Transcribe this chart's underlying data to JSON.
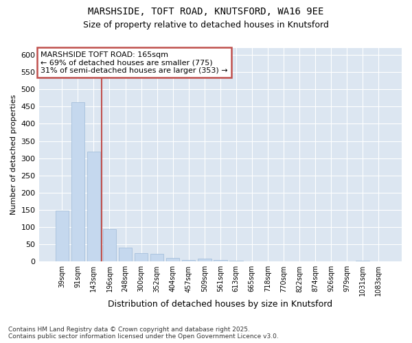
{
  "title1": "MARSHSIDE, TOFT ROAD, KNUTSFORD, WA16 9EE",
  "title2": "Size of property relative to detached houses in Knutsford",
  "xlabel": "Distribution of detached houses by size in Knutsford",
  "ylabel": "Number of detached properties",
  "categories": [
    "39sqm",
    "91sqm",
    "143sqm",
    "196sqm",
    "248sqm",
    "300sqm",
    "352sqm",
    "404sqm",
    "457sqm",
    "509sqm",
    "561sqm",
    "613sqm",
    "665sqm",
    "718sqm",
    "770sqm",
    "822sqm",
    "874sqm",
    "926sqm",
    "979sqm",
    "1031sqm",
    "1083sqm"
  ],
  "values": [
    148,
    462,
    320,
    95,
    40,
    25,
    22,
    10,
    5,
    8,
    5,
    3,
    0,
    0,
    0,
    0,
    0,
    0,
    0,
    3,
    0
  ],
  "bar_color": "#c5d8ee",
  "bar_edge_color": "#9dbad8",
  "vline_color": "#c0504d",
  "vline_pos": 2.5,
  "annotation_text": "MARSHSIDE TOFT ROAD: 165sqm\n← 69% of detached houses are smaller (775)\n31% of semi-detached houses are larger (353) →",
  "annotation_box_edgecolor": "#c0504d",
  "ylim": [
    0,
    620
  ],
  "yticks": [
    0,
    50,
    100,
    150,
    200,
    250,
    300,
    350,
    400,
    450,
    500,
    550,
    600
  ],
  "fig_bg_color": "#ffffff",
  "plot_bg_color": "#dce6f1",
  "grid_color": "#ffffff",
  "footnote": "Contains HM Land Registry data © Crown copyright and database right 2025.\nContains public sector information licensed under the Open Government Licence v3.0."
}
